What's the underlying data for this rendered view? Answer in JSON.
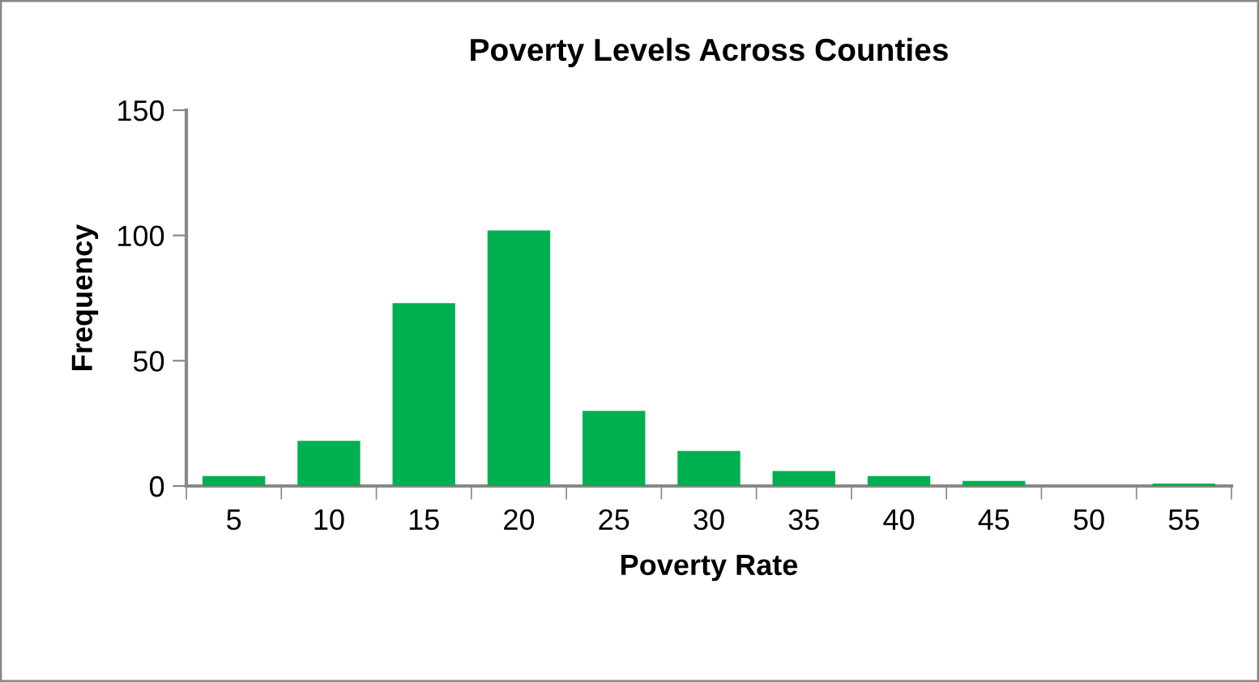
{
  "chart_data": {
    "type": "bar",
    "title": "Poverty Levels Across Counties",
    "xlabel": "Poverty Rate",
    "ylabel": "Frequency",
    "categories": [
      "5",
      "10",
      "15",
      "20",
      "25",
      "30",
      "35",
      "40",
      "45",
      "50",
      "55"
    ],
    "values": [
      4,
      18,
      73,
      102,
      30,
      14,
      6,
      4,
      2,
      0,
      1
    ],
    "color": "#00b050",
    "ylim": [
      0,
      150
    ],
    "yticks": [
      0,
      50,
      100,
      150
    ],
    "grid": false,
    "legend": false
  }
}
